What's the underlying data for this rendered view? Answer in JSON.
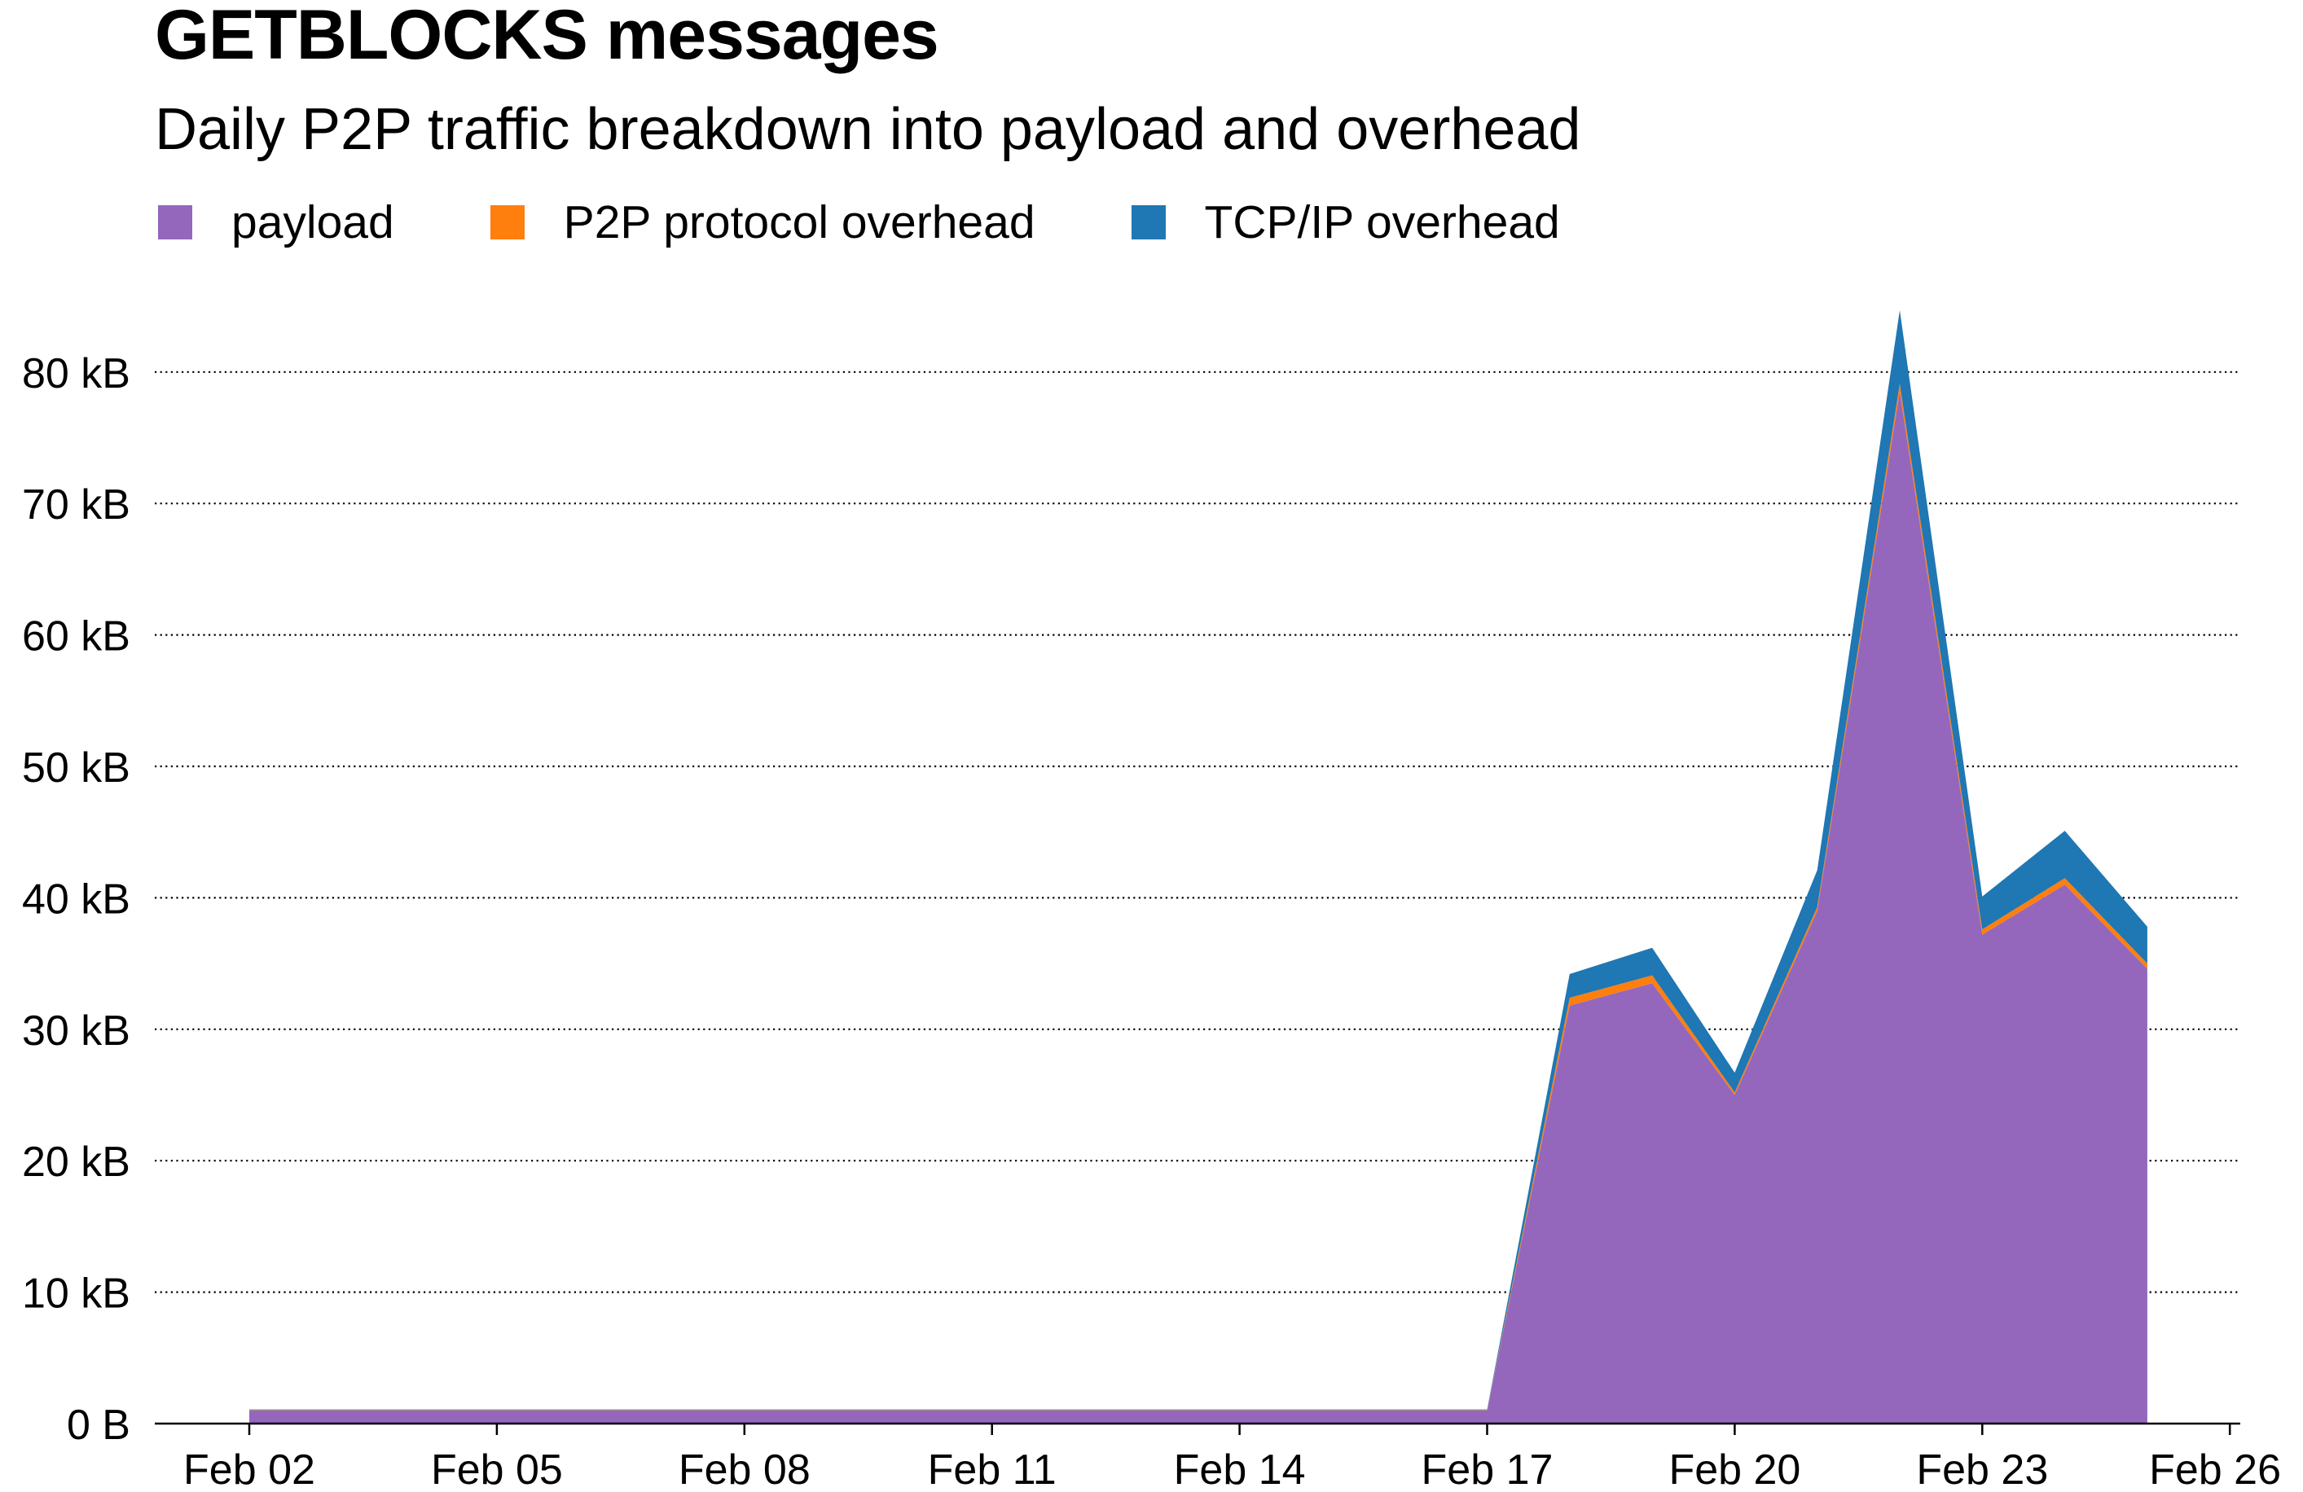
{
  "header": {
    "title": "GETBLOCKS messages",
    "subtitle": "Daily P2P traffic breakdown into payload and overhead"
  },
  "chart_data": {
    "type": "area",
    "stacked": true,
    "title": "GETBLOCKS messages",
    "subtitle": "Daily P2P traffic breakdown into payload and overhead",
    "xlabel": "",
    "ylabel": "",
    "x": [
      "Feb 02",
      "Feb 03",
      "Feb 04",
      "Feb 05",
      "Feb 06",
      "Feb 07",
      "Feb 08",
      "Feb 09",
      "Feb 10",
      "Feb 11",
      "Feb 12",
      "Feb 13",
      "Feb 14",
      "Feb 15",
      "Feb 16",
      "Feb 17",
      "Feb 18",
      "Feb 19",
      "Feb 20",
      "Feb 21",
      "Feb 22",
      "Feb 23",
      "Feb 24",
      "Feb 25"
    ],
    "x_ticks": [
      "Feb 02",
      "Feb 05",
      "Feb 08",
      "Feb 11",
      "Feb 14",
      "Feb 17",
      "Feb 20",
      "Feb 23",
      "Feb 26"
    ],
    "y_ticks": [
      "0 B",
      "10 kB",
      "20 kB",
      "30 kB",
      "40 kB",
      "50 kB",
      "60 kB",
      "70 kB",
      "80 kB"
    ],
    "ylim": [
      0,
      85
    ],
    "y_unit": "kB",
    "grid": "horizontal-dotted",
    "legend_position": "top-left",
    "series": [
      {
        "name": "payload",
        "color": "#9467bd",
        "values": [
          1.0,
          1.0,
          1.0,
          1.0,
          1.0,
          1.0,
          1.0,
          1.0,
          1.0,
          1.0,
          1.0,
          1.0,
          1.0,
          1.0,
          1.0,
          1.0,
          31.8,
          33.5,
          25.0,
          39.0,
          78.5,
          37.2,
          41.0,
          34.6
        ]
      },
      {
        "name": "P2P protocol overhead",
        "color": "#ff7f0e",
        "values": [
          0.03,
          0.03,
          0.03,
          0.03,
          0.03,
          0.03,
          0.03,
          0.03,
          0.03,
          0.03,
          0.03,
          0.03,
          0.03,
          0.03,
          0.03,
          0.03,
          0.6,
          0.6,
          0.2,
          0.3,
          0.6,
          0.4,
          0.5,
          0.4
        ]
      },
      {
        "name": "TCP/IP overhead",
        "color": "#1f77b4",
        "values": [
          0.05,
          0.05,
          0.05,
          0.05,
          0.05,
          0.05,
          0.05,
          0.05,
          0.05,
          0.05,
          0.05,
          0.05,
          0.05,
          0.05,
          0.05,
          0.05,
          1.8,
          2.1,
          1.5,
          2.8,
          5.6,
          2.5,
          3.6,
          2.8
        ]
      }
    ]
  }
}
